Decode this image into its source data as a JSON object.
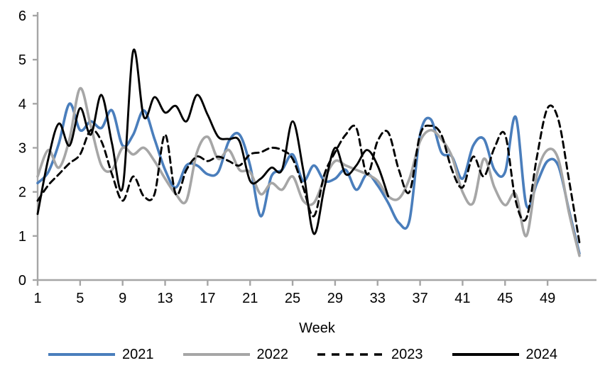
{
  "chart_data": {
    "type": "line",
    "title": "",
    "xlabel": "Week",
    "x_min": 1,
    "x_max": 52,
    "x_ticks": [
      1,
      5,
      9,
      13,
      17,
      21,
      25,
      29,
      33,
      37,
      41,
      45,
      49
    ],
    "ylim": [
      0,
      6
    ],
    "y_ticks": [
      0,
      1,
      2,
      3,
      4,
      5,
      6
    ],
    "grid": false,
    "legend_position": "bottom",
    "axis_color": "#a6a6a6",
    "text_color": "#000000",
    "series": [
      {
        "name": "2021",
        "color": "#4a7ebc",
        "style": "solid",
        "width": 3.6,
        "values": [
          2.2,
          2.45,
          3.1,
          4.0,
          3.4,
          3.6,
          3.45,
          3.85,
          3.05,
          3.3,
          3.85,
          3.2,
          2.5,
          2.1,
          2.6,
          2.6,
          2.4,
          2.45,
          3.15,
          3.3,
          2.6,
          1.45,
          2.35,
          2.5,
          2.85,
          2.25,
          2.6,
          2.25,
          2.3,
          2.5,
          2.05,
          2.4,
          2.15,
          1.75,
          1.3,
          1.35,
          3.3,
          3.65,
          2.9,
          2.8,
          2.3,
          3.05,
          3.2,
          2.5,
          2.45,
          3.7,
          1.7,
          2.2,
          2.7,
          2.6,
          1.6,
          0.6
        ]
      },
      {
        "name": "2022",
        "color": "#a6a6a6",
        "style": "solid",
        "width": 3.6,
        "values": [
          2.35,
          2.95,
          2.55,
          3.2,
          4.35,
          3.5,
          2.6,
          2.5,
          3.0,
          2.85,
          3.0,
          2.7,
          2.3,
          1.95,
          1.8,
          2.9,
          3.25,
          2.75,
          2.95,
          2.5,
          2.45,
          1.95,
          2.2,
          2.05,
          2.35,
          1.8,
          1.75,
          2.3,
          2.7,
          2.6,
          2.5,
          2.4,
          2.25,
          1.9,
          1.85,
          2.3,
          3.15,
          3.4,
          3.2,
          2.8,
          2.0,
          1.75,
          2.75,
          2.1,
          1.7,
          1.95,
          1.0,
          2.4,
          2.95,
          2.75,
          1.55,
          0.55
        ]
      },
      {
        "name": "2023",
        "color": "#000000",
        "style": "dashed",
        "width": 2.9,
        "values": [
          1.8,
          2.15,
          2.4,
          2.65,
          2.85,
          3.4,
          3.15,
          2.4,
          1.8,
          2.35,
          1.9,
          1.95,
          3.3,
          1.95,
          2.5,
          2.8,
          2.7,
          2.8,
          2.7,
          2.6,
          2.85,
          2.9,
          3.0,
          2.95,
          2.75,
          2.1,
          1.45,
          2.4,
          2.9,
          3.3,
          3.45,
          2.4,
          3.15,
          3.35,
          2.5,
          2.0,
          3.3,
          3.5,
          3.3,
          2.5,
          2.1,
          2.8,
          2.35,
          3.0,
          3.3,
          1.8,
          1.4,
          2.8,
          3.9,
          3.65,
          2.3,
          0.85
        ]
      },
      {
        "name": "2024",
        "color": "#000000",
        "style": "solid",
        "width": 2.9,
        "values": [
          1.5,
          2.75,
          3.55,
          3.05,
          3.9,
          3.3,
          4.2,
          3.1,
          2.1,
          5.2,
          3.7,
          4.15,
          3.8,
          3.95,
          3.6,
          4.2,
          3.75,
          3.25,
          3.2,
          3.15,
          2.25,
          2.3,
          2.55,
          2.5,
          3.6,
          2.5,
          1.05,
          2.1,
          3.0,
          2.4,
          2.6,
          2.95,
          2.6,
          1.9
        ]
      }
    ]
  }
}
